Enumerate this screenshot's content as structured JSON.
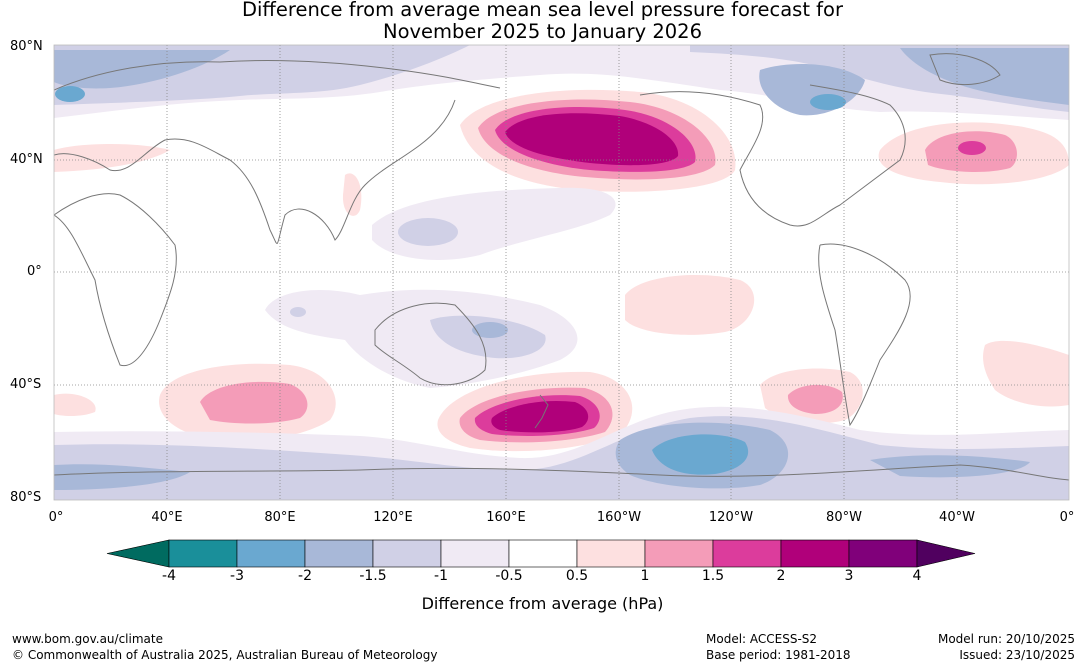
{
  "title_line1": "Difference from average mean sea level pressure forecast for",
  "title_line2": "November 2025 to January 2026",
  "lat_labels": [
    "80°N",
    "40°N",
    "0°",
    "40°S",
    "80°S"
  ],
  "lon_labels": [
    "0°",
    "40°E",
    "80°E",
    "120°E",
    "160°E",
    "160°W",
    "120°W",
    "80°W",
    "40°W",
    "0°"
  ],
  "colorbar": {
    "ticks": [
      "-4",
      "-3",
      "-2",
      "-1.5",
      "-1",
      "-0.5",
      "0.5",
      "1",
      "1.5",
      "2",
      "3",
      "4"
    ],
    "label": "Difference from average (hPa)",
    "colors": [
      "#006b60",
      "#1a8f9a",
      "#6aa8d0",
      "#a8b8d8",
      "#d0d0e6",
      "#f0eaf4",
      "#ffffff",
      "#fde0e0",
      "#f49cb8",
      "#dc3c9c",
      "#b0007a",
      "#80007a",
      "#50005f"
    ]
  },
  "footer": {
    "website": "www.bom.gov.au/climate",
    "copyright": "© Commonwealth of Australia 2025, Australian Bureau of Meteorology",
    "model": "Model: ACCESS-S2",
    "base_period": "Base period: 1981-2018",
    "model_run": "Model run: 20/10/2025",
    "issued": "Issued: 23/10/2025"
  }
}
